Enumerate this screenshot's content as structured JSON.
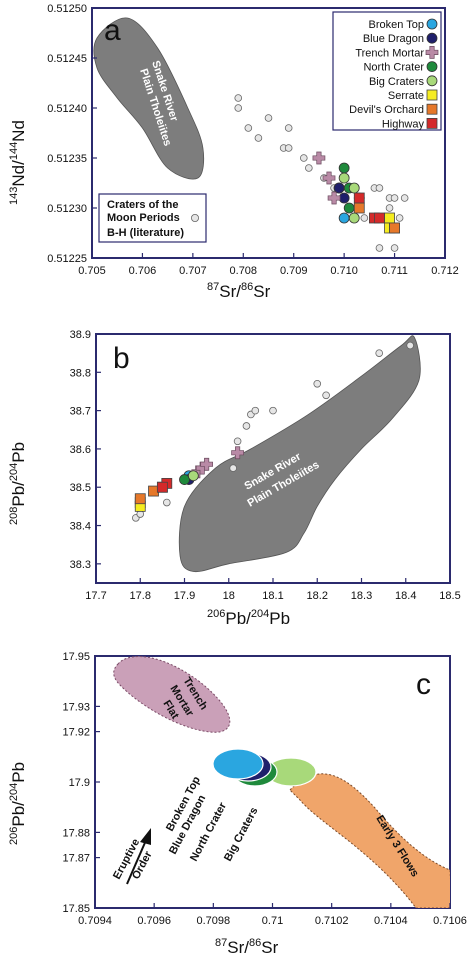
{
  "colors": {
    "frame": "#2b2a6e",
    "field_gray": "#7d7d7d",
    "literature": "#e6e6e6",
    "broken_top": "#2aa6e0",
    "blue_dragon": "#1f1f6b",
    "trench_mortar": "#b98aa6",
    "north_crater": "#1f8a3c",
    "big_craters": "#a8d97a",
    "serrate": "#f5ec20",
    "devils_orchard": "#e6782a",
    "highway": "#d42a2a",
    "trench_field": "#caa0b8",
    "early_field": "#f0a56a"
  },
  "panel_a": {
    "letter": "a",
    "xlabel_sup": "87",
    "xlabel_mid": "Sr/",
    "xlabel_sup2": "86",
    "xlabel_end": "Sr",
    "ylabel_sup": "143",
    "ylabel_mid": "Nd/",
    "ylabel_sup2": "144",
    "ylabel_end": "Nd",
    "field_label_1": "Snake River",
    "field_label_2": "Plain Tholeiites",
    "legend": [
      "Broken Top",
      "Blue Dragon",
      "Trench Mortar",
      "North Crater",
      "Big Craters",
      "Serrate",
      "Devil's Orchard",
      "Highway"
    ],
    "lit_legend_1": "Craters of the",
    "lit_legend_2": "Moon Periods",
    "lit_legend_3": "B-H (literature)"
  },
  "panel_b": {
    "letter": "b",
    "xlabel_sup": "206",
    "xlabel_mid": "Pb/",
    "xlabel_sup2": "204",
    "xlabel_end": "Pb",
    "ylabel_sup": "208",
    "ylabel_mid": "Pb/",
    "ylabel_sup2": "204",
    "ylabel_end": "Pb",
    "field_label_1": "Snake River",
    "field_label_2": "Plain Tholeiites"
  },
  "panel_c": {
    "letter": "c",
    "xlabel_sup": "87",
    "xlabel_mid": "Sr/",
    "xlabel_sup2": "86",
    "xlabel_end": "Sr",
    "ylabel_sup": "206",
    "ylabel_mid": "Pb/",
    "ylabel_sup2": "204",
    "ylabel_end": "Pb",
    "trench_label_1": "Trench",
    "trench_label_2": "Mortar",
    "trench_label_3": "Flat",
    "early_label": "Early 3 Flows",
    "eruptive_1": "Eruptive",
    "eruptive_2": "Order",
    "rot_labels": [
      "Broken Top",
      "Blue Dragon",
      "North Crater",
      "Big Craters"
    ]
  },
  "chart_data": [
    {
      "type": "scatter",
      "panel": "a",
      "xlabel": "87Sr/86Sr",
      "ylabel": "143Nd/144Nd",
      "xlim": [
        0.705,
        0.712
      ],
      "ylim": [
        0.51225,
        0.5125
      ],
      "xticks": [
        "0.705",
        "0.706",
        "0.707",
        "0.708",
        "0.709",
        "0.710",
        "0.711",
        "0.712"
      ],
      "yticks": [
        "0.51225",
        "0.51230",
        "0.51235",
        "0.51240",
        "0.51245",
        "0.51250"
      ],
      "field": {
        "name": "Snake River Plain Tholeiites",
        "points": [
          [
            0.7051,
            0.51247
          ],
          [
            0.7057,
            0.51249
          ],
          [
            0.7063,
            0.51246
          ],
          [
            0.7069,
            0.5124
          ],
          [
            0.7072,
            0.51236
          ],
          [
            0.7071,
            0.51233
          ],
          [
            0.7065,
            0.51234
          ],
          [
            0.706,
            0.51238
          ],
          [
            0.7055,
            0.51241
          ],
          [
            0.7051,
            0.51244
          ]
        ]
      },
      "series": [
        {
          "name": "Broken Top",
          "marker": "circle",
          "color": "#2aa6e0",
          "points": [
            [
              0.7099,
              0.51232
            ],
            [
              0.71,
              0.51229
            ]
          ]
        },
        {
          "name": "Blue Dragon",
          "marker": "circle",
          "color": "#1f1f6b",
          "points": [
            [
              0.7099,
              0.51232
            ],
            [
              0.71,
              0.51231
            ]
          ]
        },
        {
          "name": "Trench Mortar",
          "marker": "cross",
          "color": "#b98aa6",
          "points": [
            [
              0.7095,
              0.51235
            ],
            [
              0.7097,
              0.51233
            ],
            [
              0.7098,
              0.51231
            ]
          ]
        },
        {
          "name": "North Crater",
          "marker": "circle",
          "color": "#1f8a3c",
          "points": [
            [
              0.71,
              0.51234
            ],
            [
              0.7101,
              0.51232
            ],
            [
              0.7101,
              0.5123
            ]
          ]
        },
        {
          "name": "Big Craters",
          "marker": "circle",
          "color": "#a8d97a",
          "points": [
            [
              0.71,
              0.51233
            ],
            [
              0.7102,
              0.51232
            ],
            [
              0.7102,
              0.51229
            ],
            [
              0.7103,
              0.51231
            ]
          ]
        },
        {
          "name": "Serrate",
          "marker": "square",
          "color": "#f5ec20",
          "points": [
            [
              0.7109,
              0.51229
            ],
            [
              0.7109,
              0.51228
            ],
            [
              0.711,
              0.51228
            ]
          ]
        },
        {
          "name": "Devil's Orchard",
          "marker": "square",
          "color": "#e6782a",
          "points": [
            [
              0.7103,
              0.5123
            ],
            [
              0.711,
              0.51228
            ]
          ]
        },
        {
          "name": "Highway",
          "marker": "square",
          "color": "#d42a2a",
          "points": [
            [
              0.7106,
              0.51229
            ],
            [
              0.7107,
              0.51229
            ],
            [
              0.7103,
              0.51231
            ]
          ]
        },
        {
          "name": "Craters of the Moon Periods B-H (literature)",
          "marker": "circle",
          "color": "#e6e6e6",
          "points": [
            [
              0.7079,
              0.51241
            ],
            [
              0.7079,
              0.5124
            ],
            [
              0.7081,
              0.51238
            ],
            [
              0.7083,
              0.51237
            ],
            [
              0.7085,
              0.51239
            ],
            [
              0.7088,
              0.51236
            ],
            [
              0.7089,
              0.51238
            ],
            [
              0.7089,
              0.51236
            ],
            [
              0.7092,
              0.51235
            ],
            [
              0.7093,
              0.51234
            ],
            [
              0.7096,
              0.51233
            ],
            [
              0.7098,
              0.51232
            ],
            [
              0.7104,
              0.51229
            ],
            [
              0.7106,
              0.51232
            ],
            [
              0.7107,
              0.51232
            ],
            [
              0.7109,
              0.51231
            ],
            [
              0.7109,
              0.5123
            ],
            [
              0.711,
              0.51231
            ],
            [
              0.7107,
              0.51226
            ],
            [
              0.711,
              0.51226
            ],
            [
              0.7111,
              0.51229
            ],
            [
              0.7112,
              0.51231
            ]
          ]
        }
      ]
    },
    {
      "type": "scatter",
      "panel": "b",
      "xlabel": "206Pb/204Pb",
      "ylabel": "208Pb/204Pb",
      "xlim": [
        17.7,
        18.5
      ],
      "ylim": [
        38.25,
        38.9
      ],
      "xticks": [
        "17.7",
        "17.8",
        "17.9",
        "18",
        "18.1",
        "18.2",
        "18.3",
        "18.4",
        "18.5"
      ],
      "yticks": [
        "38.3",
        "38.4",
        "38.5",
        "38.6",
        "38.7",
        "38.8",
        "38.9"
      ],
      "field": {
        "name": "Snake River Plain Tholeiites",
        "points": [
          [
            17.89,
            38.32
          ],
          [
            17.9,
            38.45
          ],
          [
            17.97,
            38.55
          ],
          [
            18.05,
            38.6
          ],
          [
            18.18,
            38.69
          ],
          [
            18.3,
            38.79
          ],
          [
            18.39,
            38.87
          ],
          [
            18.42,
            38.89
          ],
          [
            18.43,
            38.78
          ],
          [
            18.37,
            38.68
          ],
          [
            18.3,
            38.6
          ],
          [
            18.24,
            38.52
          ],
          [
            18.2,
            38.45
          ],
          [
            18.17,
            38.38
          ],
          [
            18.13,
            38.33
          ],
          [
            18.0,
            38.3
          ],
          [
            17.92,
            38.28
          ]
        ]
      },
      "series": [
        {
          "name": "Broken Top",
          "marker": "circle",
          "color": "#2aa6e0",
          "points": [
            [
              17.91,
              38.53
            ]
          ]
        },
        {
          "name": "Blue Dragon",
          "marker": "circle",
          "color": "#1f1f6b",
          "points": [
            [
              17.91,
              38.52
            ]
          ]
        },
        {
          "name": "Trench Mortar",
          "marker": "cross",
          "color": "#b98aa6",
          "points": [
            [
              17.93,
              38.54
            ],
            [
              17.94,
              38.55
            ],
            [
              17.95,
              38.56
            ],
            [
              18.02,
              38.59
            ]
          ]
        },
        {
          "name": "North Crater",
          "marker": "circle",
          "color": "#1f8a3c",
          "points": [
            [
              17.9,
              38.52
            ]
          ]
        },
        {
          "name": "Big Craters",
          "marker": "circle",
          "color": "#a8d97a",
          "points": [
            [
              17.92,
              38.53
            ]
          ]
        },
        {
          "name": "Serrate",
          "marker": "square",
          "color": "#f5ec20",
          "points": [
            [
              17.8,
              38.46
            ],
            [
              17.8,
              38.45
            ]
          ]
        },
        {
          "name": "Devil's Orchard",
          "marker": "square",
          "color": "#e6782a",
          "points": [
            [
              17.83,
              38.49
            ],
            [
              17.85,
              38.5
            ],
            [
              17.8,
              38.47
            ]
          ]
        },
        {
          "name": "Highway",
          "marker": "square",
          "color": "#d42a2a",
          "points": [
            [
              17.86,
              38.51
            ],
            [
              17.85,
              38.5
            ]
          ]
        },
        {
          "name": "Craters of the Moon Periods B-H (literature)",
          "marker": "circle",
          "color": "#e6e6e6",
          "points": [
            [
              17.79,
              38.42
            ],
            [
              17.8,
              38.43
            ],
            [
              17.86,
              38.46
            ],
            [
              18.01,
              38.55
            ],
            [
              18.02,
              38.62
            ],
            [
              18.04,
              38.66
            ],
            [
              18.05,
              38.69
            ],
            [
              18.06,
              38.7
            ],
            [
              18.1,
              38.7
            ],
            [
              18.2,
              38.77
            ],
            [
              18.22,
              38.74
            ],
            [
              18.34,
              38.85
            ],
            [
              18.41,
              38.87
            ]
          ]
        }
      ]
    },
    {
      "type": "scatter",
      "panel": "c",
      "xlabel": "87Sr/86Sr",
      "ylabel": "206Pb/204Pb",
      "xlim": [
        0.7094,
        0.7106
      ],
      "ylim": [
        17.85,
        17.95
      ],
      "xticks": [
        "0.7094",
        "0.7096",
        "0.7098",
        "0.71",
        "0.7102",
        "0.7104",
        "0.7106"
      ],
      "yticks": [
        "17.85",
        "17.87",
        "17.88",
        "17.9",
        "17.92",
        "17.93",
        "17.95"
      ],
      "series": [
        {
          "name": "Trench Mortar Flat",
          "marker": "field",
          "color": "#caa0b8",
          "points": [
            [
              0.7096,
              17.945
            ],
            [
              0.7099,
              17.927
            ]
          ]
        },
        {
          "name": "Broken Top",
          "marker": "ellipse",
          "color": "#2aa6e0",
          "points": [
            [
              0.70993,
              17.905
            ]
          ]
        },
        {
          "name": "Blue Dragon",
          "marker": "ellipse",
          "color": "#1f1f6b",
          "points": [
            [
              0.70998,
              17.904
            ]
          ]
        },
        {
          "name": "North Crater",
          "marker": "ellipse",
          "color": "#1f8a3c",
          "points": [
            [
              0.71004,
              17.903
            ]
          ]
        },
        {
          "name": "Big Craters",
          "marker": "ellipse",
          "color": "#a8d97a",
          "points": [
            [
              0.71015,
              17.903
            ]
          ]
        },
        {
          "name": "Early 3 Flows",
          "marker": "field",
          "color": "#f0a56a",
          "points": [
            [
              0.7102,
              17.9
            ],
            [
              0.7106,
              17.855
            ]
          ]
        }
      ]
    }
  ]
}
